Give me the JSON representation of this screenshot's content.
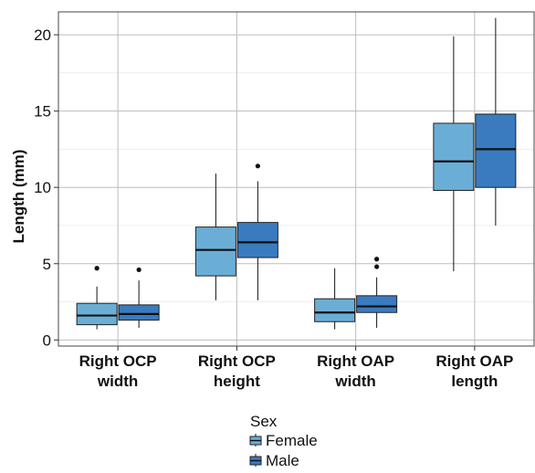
{
  "chart_data": {
    "type": "boxplot",
    "ylabel": "Length (mm)",
    "xlabel": "",
    "ylim": [
      -0.4,
      21.5
    ],
    "y_ticks": [
      0,
      5,
      10,
      15,
      20
    ],
    "grid": true,
    "legend_placement": "bottom",
    "legend_title": "Sex",
    "categories": [
      [
        "Right OCP",
        "width"
      ],
      [
        "Right OCP",
        "height"
      ],
      [
        "Right OAP",
        "width"
      ],
      [
        "Right OAP",
        "length"
      ]
    ],
    "series": [
      {
        "name": "Female",
        "color": "#6aaed6",
        "boxes": [
          {
            "whisker_low": 0.7,
            "q1": 1.0,
            "median": 1.6,
            "q3": 2.4,
            "whisker_high": 3.5,
            "outliers": [
              4.7
            ]
          },
          {
            "whisker_low": 2.6,
            "q1": 4.2,
            "median": 5.9,
            "q3": 7.4,
            "whisker_high": 10.9,
            "outliers": []
          },
          {
            "whisker_low": 0.7,
            "q1": 1.2,
            "median": 1.8,
            "q3": 2.7,
            "whisker_high": 4.7,
            "outliers": []
          },
          {
            "whisker_low": 4.5,
            "q1": 9.8,
            "median": 11.7,
            "q3": 14.2,
            "whisker_high": 19.9,
            "outliers": []
          }
        ]
      },
      {
        "name": "Male",
        "color": "#3a7bbf",
        "boxes": [
          {
            "whisker_low": 0.8,
            "q1": 1.3,
            "median": 1.7,
            "q3": 2.3,
            "whisker_high": 3.9,
            "outliers": [
              4.6
            ]
          },
          {
            "whisker_low": 2.6,
            "q1": 5.4,
            "median": 6.4,
            "q3": 7.7,
            "whisker_high": 10.4,
            "outliers": [
              11.4
            ]
          },
          {
            "whisker_low": 0.8,
            "q1": 1.8,
            "median": 2.2,
            "q3": 2.9,
            "whisker_high": 4.1,
            "outliers": [
              4.8,
              5.3
            ]
          },
          {
            "whisker_low": 7.5,
            "q1": 10.0,
            "median": 12.5,
            "q3": 14.8,
            "whisker_high": 21.1,
            "outliers": []
          }
        ]
      }
    ]
  }
}
